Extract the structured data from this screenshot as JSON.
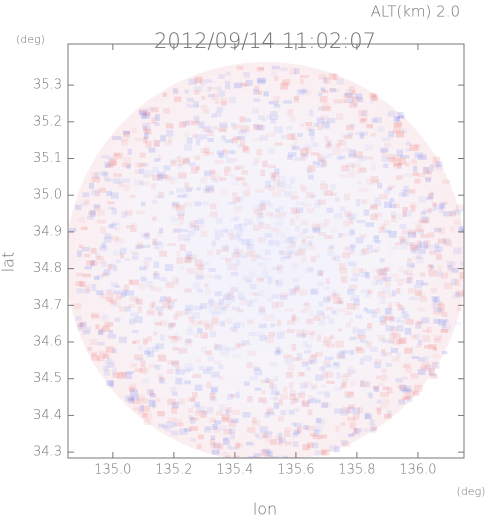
{
  "chart_data": {
    "type": "radar-image",
    "title": "2012/09/14 11:02:07",
    "annotation": "ALT(km) 2.0",
    "x_label": "lon",
    "y_label": "lat",
    "x_unit": "(deg)",
    "y_unit": "(deg)",
    "xlim": [
      134.853,
      136.151
    ],
    "ylim": [
      34.284,
      35.412
    ],
    "xticks": [
      {
        "value": 135,
        "label": "135.0"
      },
      135.2,
      135.4,
      135.6,
      135.8,
      {
        "value": 136,
        "label": "136.0"
      }
    ],
    "yticks": [
      {
        "value": 34.3,
        "label": "34.3"
      },
      34.4,
      34.5,
      34.6,
      34.7,
      34.8,
      34.9,
      {
        "value": 35,
        "label": "35.0"
      },
      35.1,
      35.2,
      35.3
    ]
  }
}
